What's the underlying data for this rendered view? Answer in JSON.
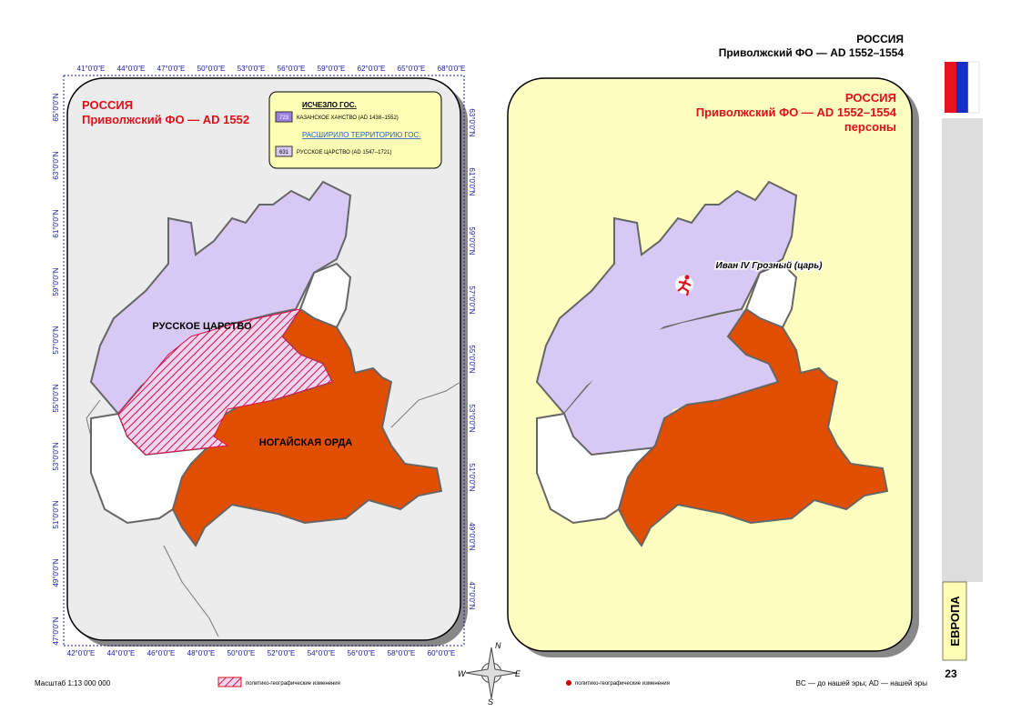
{
  "header": {
    "country": "РОССИЯ",
    "region": "Приволжский ФО — AD 1552–1554"
  },
  "left_map": {
    "country": "РОССИЯ",
    "region": "Приволжский ФО — AD 1552",
    "legend": {
      "vanished_heading": "ИСЧЕЗЛО ГОС.",
      "vanished_code": "723",
      "vanished_name": "КАЗАНСКОЕ ХАНСТВО (AD 1438–1552)",
      "expanded_heading": "РАСШИРИЛО ТЕРРИТОРИЮ ГОС.",
      "expanded_code": "631",
      "expanded_name": "РУССКОЕ ЦАРСТВО (AD 1547–1721)"
    },
    "labels": [
      "РУССКОЕ ЦАРСТВО",
      "НОГАЙСКАЯ ОРДА"
    ],
    "top_axis": [
      "41°0'0\"E",
      "44°0'0\"E",
      "47°0'0\"E",
      "50°0'0\"E",
      "53°0'0\"E",
      "56°0'0\"E",
      "59°0'0\"E",
      "62°0'0\"E",
      "65°0'0\"E",
      "68°0'0\"E"
    ],
    "bottom_axis": [
      "42°0'0\"E",
      "44°0'0\"E",
      "46°0'0\"E",
      "48°0'0\"E",
      "50°0'0\"E",
      "52°0'0\"E",
      "54°0'0\"E",
      "56°0'0\"E",
      "58°0'0\"E",
      "60°0'0\"E"
    ],
    "left_axis": [
      "65°0'0\"N",
      "63°0'0\"N",
      "61°0'0\"N",
      "59°0'0\"N",
      "57°0'0\"N",
      "55°0'0\"N",
      "53°0'0\"N",
      "51°0'0\"N",
      "49°0'0\"N",
      "47°0'0\"N"
    ],
    "right_axis": [
      "63°0'0\"N",
      "61°0'0\"N",
      "59°0'0\"N",
      "57°0'0\"N",
      "55°0'0\"N",
      "53°0'0\"N",
      "51°0'0\"N",
      "49°0'0\"N",
      "47°0'0\"N"
    ]
  },
  "right_map": {
    "country": "РОССИЯ",
    "region": "Приволжский ФО — AD 1552–1554",
    "subtitle": "персоны",
    "person": "Иван IV Грозный (царь)"
  },
  "compass": [
    "N",
    "E",
    "S",
    "W"
  ],
  "footer": {
    "scale": "Масштаб 1:13 000 000",
    "hatch_legend": "политико-географические изменения",
    "dot_legend": "политико-географические изменения",
    "era_note": "BC — до нашей эры; AD — нашей эры",
    "section": "ЕВРОПА",
    "page": "23"
  }
}
